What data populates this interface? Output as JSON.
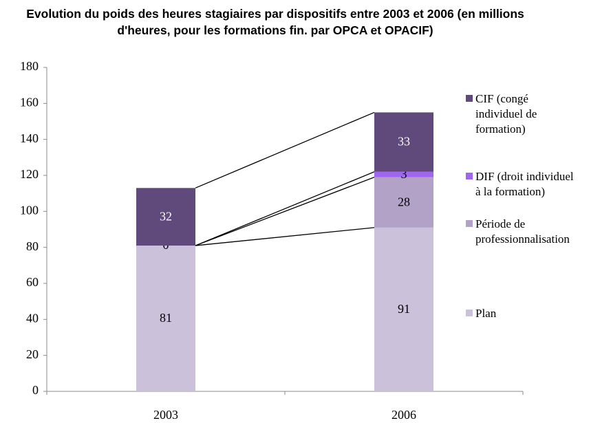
{
  "chart_data": {
    "type": "stacked_bar",
    "title": "Evolution du poids des heures stagiaires par dispositifs entre 2003 et 2006 (en millions d'heures, pour les formations fin. par OPCA et OPACIF)",
    "categories": [
      "2003",
      "2006"
    ],
    "series": [
      {
        "name": "Plan",
        "color": "#ccc1da",
        "label_color": "#000000",
        "values": [
          81,
          91
        ]
      },
      {
        "name": "Période de professionnalisation",
        "color": "#b3a2c7",
        "label_color": "#000000",
        "values": [
          0,
          28
        ]
      },
      {
        "name": "DIF (droit individuel à la formation)",
        "color": "#a066f0",
        "label_color": "#000000",
        "values": [
          null,
          3
        ]
      },
      {
        "name": "CIF (congé individuel de formation)",
        "color": "#604a7b",
        "label_color": "#ffffff",
        "values": [
          32,
          33
        ]
      }
    ],
    "ylim": [
      0,
      180
    ],
    "yticks": [
      0,
      20,
      40,
      60,
      80,
      100,
      120,
      140,
      160,
      180
    ],
    "series_lines": true,
    "legend": "right"
  }
}
